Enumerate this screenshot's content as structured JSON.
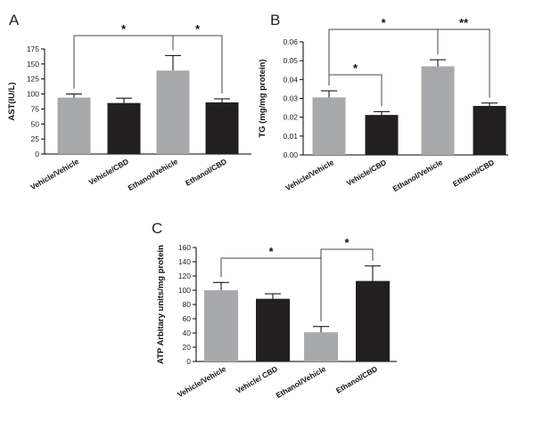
{
  "chart_data": [
    {
      "panel": "A",
      "type": "bar",
      "categories": [
        "Vehicle/Vehicle",
        "Vehicle/CBD",
        "Ethanol/Vehicle",
        "Ethanol/CBD"
      ],
      "values": [
        94,
        85,
        139,
        86
      ],
      "errors": [
        6,
        8,
        25,
        6
      ],
      "colors": [
        "#a7a9ac",
        "#231f20",
        "#a7a9ac",
        "#231f20"
      ],
      "ylabel": "AST(IU/L)",
      "ylim": [
        0,
        175
      ],
      "yticks": [
        0,
        25,
        50,
        75,
        100,
        125,
        150,
        175
      ],
      "tick_decimals": 0,
      "significance": [
        {
          "from": 0,
          "to": 2,
          "label": "*"
        },
        {
          "from": 2,
          "to": 3,
          "label": "*"
        }
      ]
    },
    {
      "panel": "B",
      "type": "bar",
      "categories": [
        "Vehicle/Vehicle",
        "Vehicle/CBD",
        "Ethanol/Vehicle",
        "Ethanol/CBD"
      ],
      "values": [
        0.0305,
        0.0212,
        0.047,
        0.026
      ],
      "errors": [
        0.0035,
        0.0018,
        0.0035,
        0.0015
      ],
      "colors": [
        "#a7a9ac",
        "#231f20",
        "#a7a9ac",
        "#231f20"
      ],
      "ylabel": "TG (mg/mg protein)",
      "ylim": [
        0,
        0.06
      ],
      "yticks": [
        0,
        0.01,
        0.02,
        0.03,
        0.04,
        0.05,
        0.06
      ],
      "tick_decimals": 2,
      "significance": [
        {
          "from": 0,
          "to": 2,
          "label": "*"
        },
        {
          "from": 0,
          "to": 1,
          "label": "*"
        },
        {
          "from": 2,
          "to": 3,
          "label": "**"
        }
      ]
    },
    {
      "panel": "C",
      "type": "bar",
      "categories": [
        "Vehicle/Vehicle",
        "Vehicle/ CBD",
        "Ethanol/Vehicle",
        "Ethanol/CBD"
      ],
      "values": [
        100,
        88,
        41,
        113
      ],
      "errors": [
        11,
        7,
        8,
        21
      ],
      "colors": [
        "#a7a9ac",
        "#231f20",
        "#a7a9ac",
        "#231f20"
      ],
      "ylabel": "ATP Arbitary units/mg protein",
      "ylim": [
        0,
        160
      ],
      "yticks": [
        0,
        20,
        40,
        60,
        80,
        100,
        120,
        140,
        160
      ],
      "tick_decimals": 0,
      "significance": [
        {
          "from": 0,
          "to": 2,
          "label": "*"
        },
        {
          "from": 2,
          "to": 3,
          "label": "*"
        }
      ]
    }
  ]
}
